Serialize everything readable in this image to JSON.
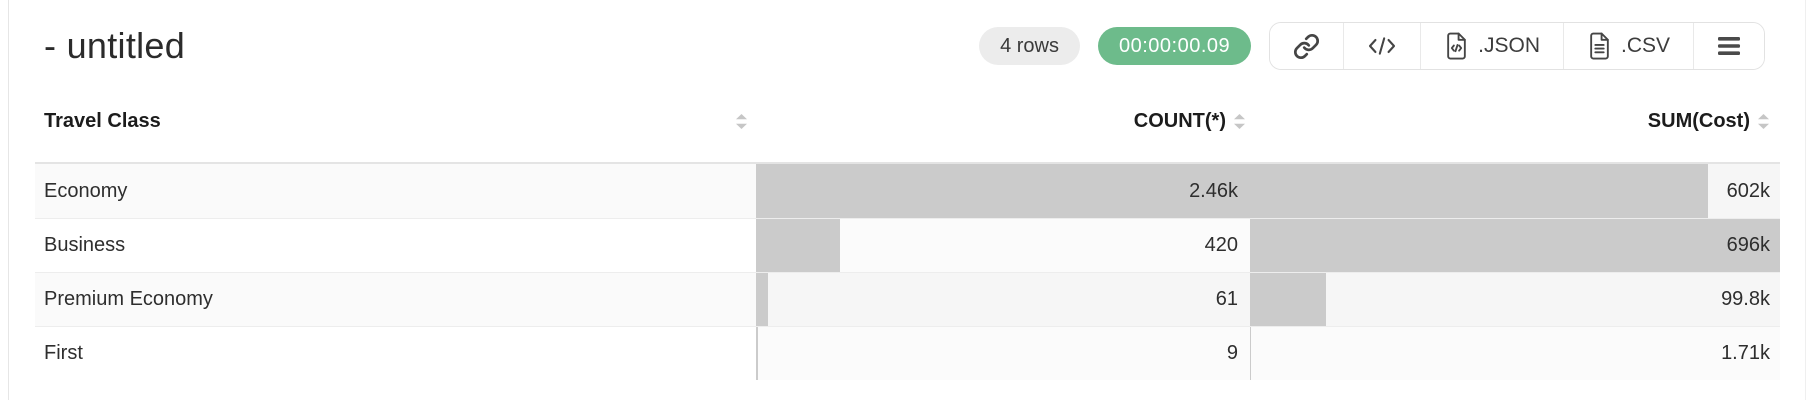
{
  "header": {
    "title": "- untitled",
    "rows_badge": "4 rows",
    "timer_badge": "00:00:00.09",
    "toolbar": {
      "link_icon": "link-icon",
      "code_icon": "code-icon",
      "json_label": ".JSON",
      "csv_label": ".CSV",
      "menu_icon": "hamburger-menu-icon"
    }
  },
  "table": {
    "columns": [
      {
        "label": "Travel Class",
        "align": "left",
        "sortable": true
      },
      {
        "label": "COUNT(*)",
        "align": "right",
        "sortable": true
      },
      {
        "label": "SUM(Cost)",
        "align": "right",
        "sortable": true
      }
    ],
    "rows": [
      {
        "travel_class": "Economy",
        "count": "2.46k",
        "count_bar_pct": 100,
        "sum": "602k",
        "sum_bar_pct": 86.5
      },
      {
        "travel_class": "Business",
        "count": "420",
        "count_bar_pct": 17.1,
        "sum": "696k",
        "sum_bar_pct": 100
      },
      {
        "travel_class": "Premium Economy",
        "count": "61",
        "count_bar_pct": 2.5,
        "sum": "99.8k",
        "sum_bar_pct": 14.3
      },
      {
        "travel_class": "First",
        "count": "9",
        "count_bar_pct": 0.4,
        "sum": "1.71k",
        "sum_bar_pct": 0.25
      }
    ]
  },
  "colors": {
    "timer_badge_bg": "#6dbb8b",
    "rows_badge_bg": "#ececec",
    "bar_fill": "#cbcbcb",
    "row_stripe": "#fafafa",
    "separator": "#e4e4e4",
    "header_text": "#1c1c1c",
    "cell_text": "#2e2e2e"
  }
}
